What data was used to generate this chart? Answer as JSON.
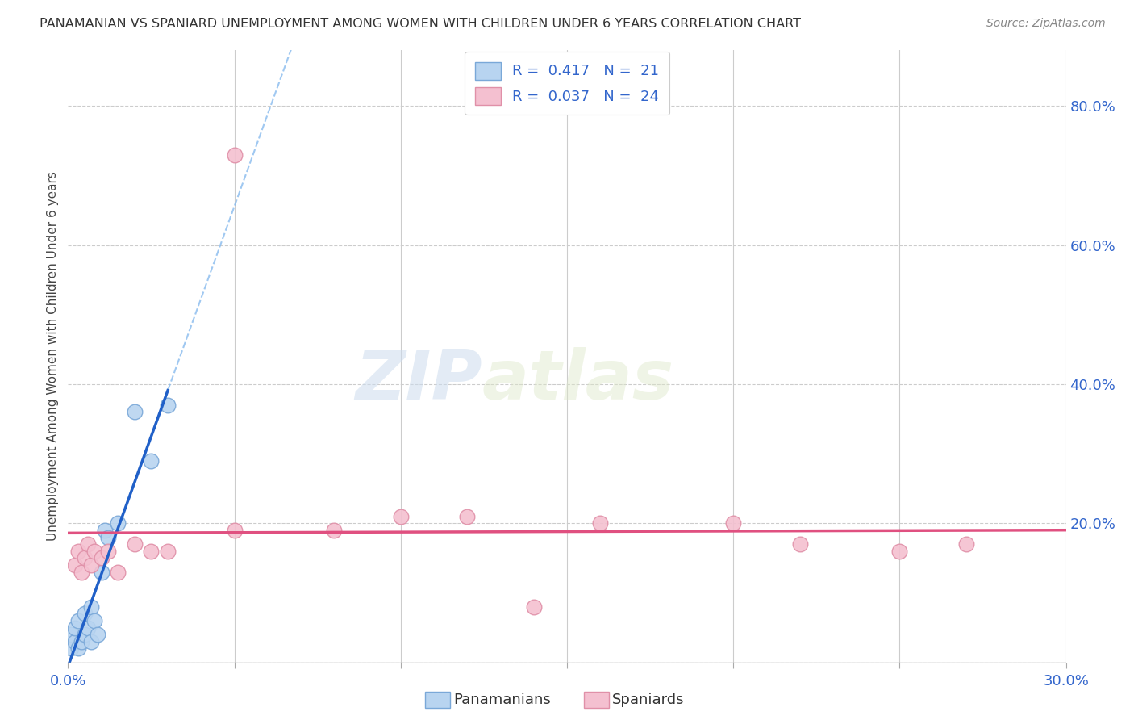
{
  "title": "PANAMANIAN VS SPANIARD UNEMPLOYMENT AMONG WOMEN WITH CHILDREN UNDER 6 YEARS CORRELATION CHART",
  "source": "Source: ZipAtlas.com",
  "ylabel": "Unemployment Among Women with Children Under 6 years",
  "xlim": [
    0.0,
    0.3
  ],
  "ylim": [
    0.0,
    0.88
  ],
  "xticks": [
    0.0,
    0.05,
    0.1,
    0.15,
    0.2,
    0.25,
    0.3
  ],
  "xtick_labels": [
    "0.0%",
    "",
    "",
    "",
    "",
    "",
    "30.0%"
  ],
  "yticks_right": [
    0.0,
    0.2,
    0.4,
    0.6,
    0.8
  ],
  "ytick_labels_right": [
    "",
    "20.0%",
    "40.0%",
    "60.0%",
    "80.0%"
  ],
  "legend_R_blue": "R =  0.417",
  "legend_N_blue": "N =  21",
  "legend_R_pink": "R =  0.037",
  "legend_N_pink": "N =  24",
  "panamanians": {
    "line_color": "#2060c8",
    "scatter_face": "#b8d4f0",
    "scatter_edge": "#7aa8d8",
    "x": [
      0.001,
      0.001,
      0.002,
      0.002,
      0.003,
      0.003,
      0.004,
      0.005,
      0.005,
      0.006,
      0.007,
      0.007,
      0.008,
      0.009,
      0.01,
      0.011,
      0.012,
      0.015,
      0.02,
      0.025,
      0.03
    ],
    "y": [
      0.02,
      0.04,
      0.03,
      0.05,
      0.02,
      0.06,
      0.03,
      0.04,
      0.07,
      0.05,
      0.03,
      0.08,
      0.06,
      0.04,
      0.13,
      0.19,
      0.18,
      0.2,
      0.36,
      0.29,
      0.37
    ]
  },
  "spaniards": {
    "line_color": "#e05080",
    "scatter_face": "#f4c0d0",
    "scatter_edge": "#e090a8",
    "x": [
      0.002,
      0.003,
      0.004,
      0.005,
      0.006,
      0.007,
      0.008,
      0.01,
      0.012,
      0.015,
      0.02,
      0.025,
      0.03,
      0.05,
      0.08,
      0.1,
      0.12,
      0.14,
      0.16,
      0.2,
      0.22,
      0.25,
      0.27,
      0.05
    ],
    "y": [
      0.14,
      0.16,
      0.13,
      0.15,
      0.17,
      0.14,
      0.16,
      0.15,
      0.16,
      0.13,
      0.17,
      0.16,
      0.16,
      0.19,
      0.19,
      0.21,
      0.21,
      0.08,
      0.2,
      0.2,
      0.17,
      0.16,
      0.17,
      0.73
    ]
  },
  "watermark_zip": "ZIP",
  "watermark_atlas": "atlas",
  "background_color": "#ffffff",
  "grid_color": "#cccccc",
  "bottom_legend_blue_label": "Panamanians",
  "bottom_legend_pink_label": "Spaniards"
}
